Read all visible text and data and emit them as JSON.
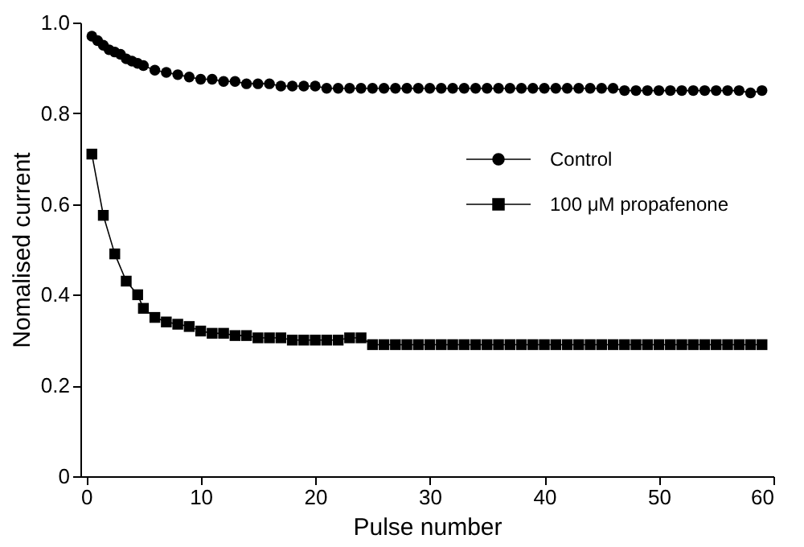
{
  "chart_data": {
    "type": "line",
    "xlabel": "Pulse number",
    "ylabel": "Nomalised current",
    "xlim": [
      -0.5,
      60
    ],
    "xticks": [
      0,
      10,
      20,
      30,
      40,
      50,
      60
    ],
    "ylim": [
      0,
      1
    ],
    "yticks": [
      {
        "value": 0,
        "label": "0"
      },
      0.2,
      0.4,
      0.6,
      0.8,
      {
        "value": 1,
        "label": "1.0"
      }
    ],
    "grid": false,
    "legend": "right",
    "line_style": "solid",
    "series": [
      {
        "name": "Control",
        "color": "#000000",
        "marker": "circle",
        "x": [
          0.5,
          1,
          1.5,
          2,
          2.5,
          3,
          3.5,
          4,
          4.5,
          5,
          6,
          7,
          8,
          9,
          10,
          11,
          12,
          13,
          14,
          15,
          16,
          17,
          18,
          19,
          20,
          21,
          22,
          23,
          24,
          25,
          26,
          27,
          28,
          29,
          30,
          31,
          32,
          33,
          34,
          35,
          36,
          37,
          38,
          39,
          40,
          41,
          42,
          43,
          44,
          45,
          46,
          47,
          48,
          49,
          50,
          51,
          52,
          53,
          54,
          55,
          56,
          57,
          58,
          59
        ],
        "values": [
          0.97,
          0.96,
          0.95,
          0.94,
          0.935,
          0.93,
          0.92,
          0.915,
          0.91,
          0.905,
          0.895,
          0.89,
          0.885,
          0.88,
          0.875,
          0.875,
          0.87,
          0.87,
          0.865,
          0.865,
          0.865,
          0.86,
          0.86,
          0.86,
          0.86,
          0.855,
          0.855,
          0.855,
          0.855,
          0.855,
          0.855,
          0.855,
          0.855,
          0.855,
          0.855,
          0.855,
          0.855,
          0.855,
          0.855,
          0.855,
          0.855,
          0.855,
          0.855,
          0.855,
          0.855,
          0.855,
          0.855,
          0.855,
          0.855,
          0.855,
          0.855,
          0.85,
          0.85,
          0.85,
          0.85,
          0.85,
          0.85,
          0.85,
          0.85,
          0.85,
          0.85,
          0.85,
          0.845,
          0.85
        ]
      },
      {
        "name": "100 μM propafenone",
        "color": "#000000",
        "marker": "square",
        "x": [
          0.5,
          1.5,
          2.5,
          3.5,
          4.5,
          5,
          6,
          7,
          8,
          9,
          10,
          11,
          12,
          13,
          14,
          15,
          16,
          17,
          18,
          19,
          20,
          21,
          22,
          23,
          24,
          25,
          26,
          27,
          28,
          29,
          30,
          31,
          32,
          33,
          34,
          35,
          36,
          37,
          38,
          39,
          40,
          41,
          42,
          43,
          44,
          45,
          46,
          47,
          48,
          49,
          50,
          51,
          52,
          53,
          54,
          55,
          56,
          57,
          58,
          59
        ],
        "values": [
          0.71,
          0.575,
          0.49,
          0.43,
          0.4,
          0.37,
          0.35,
          0.34,
          0.335,
          0.33,
          0.32,
          0.315,
          0.315,
          0.31,
          0.31,
          0.305,
          0.305,
          0.305,
          0.3,
          0.3,
          0.3,
          0.3,
          0.3,
          0.305,
          0.305,
          0.29,
          0.29,
          0.29,
          0.29,
          0.29,
          0.29,
          0.29,
          0.29,
          0.29,
          0.29,
          0.29,
          0.29,
          0.29,
          0.29,
          0.29,
          0.29,
          0.29,
          0.29,
          0.29,
          0.29,
          0.29,
          0.29,
          0.29,
          0.29,
          0.29,
          0.29,
          0.29,
          0.29,
          0.29,
          0.29,
          0.29,
          0.29,
          0.29,
          0.29,
          0.29
        ]
      }
    ]
  }
}
